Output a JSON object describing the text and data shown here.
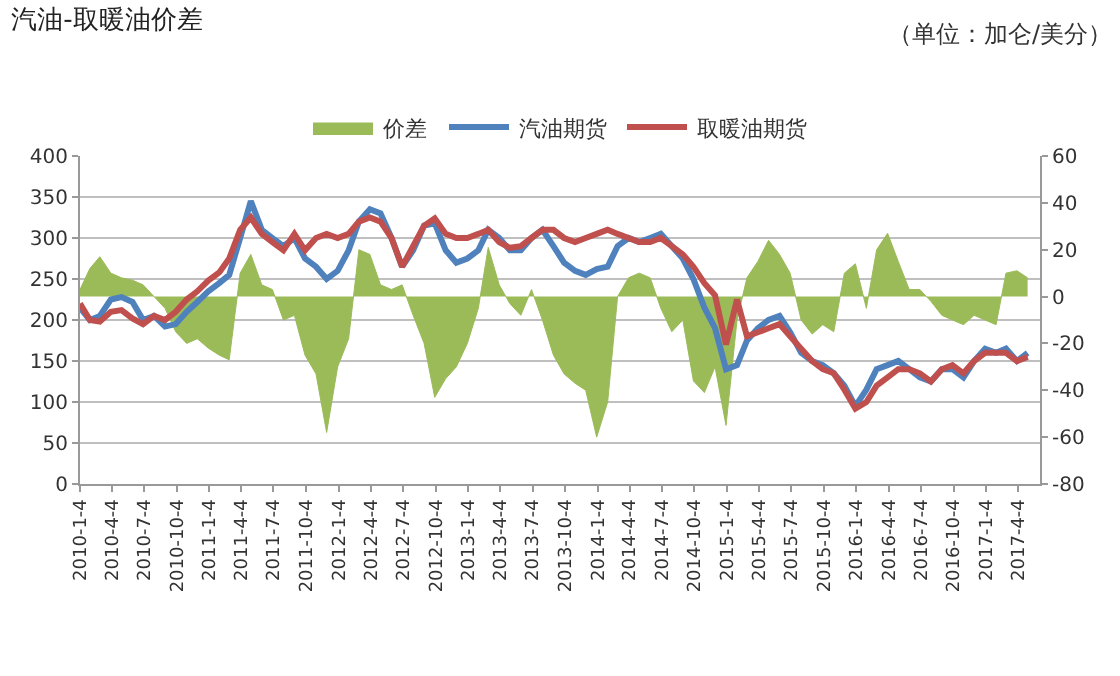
{
  "chart_data": {
    "type": "line",
    "title": "汽油-取暖油价差",
    "subtitle": "（单位：加仑/美分）",
    "xlim": [
      "2010-01-04",
      "2017-06-05"
    ],
    "xticks": [
      {
        "value": "2010-01-04",
        "label": "2010-1-4"
      },
      {
        "value": "2010-04-04",
        "label": "2010-4-4"
      },
      {
        "value": "2010-07-04",
        "label": "2010-7-4"
      },
      {
        "value": "2010-10-04",
        "label": "2010-10-4"
      },
      {
        "value": "2011-01-04",
        "label": "2011-1-4"
      },
      {
        "value": "2011-04-04",
        "label": "2011-4-4"
      },
      {
        "value": "2011-07-04",
        "label": "2011-7-4"
      },
      {
        "value": "2011-10-04",
        "label": "2011-10-4"
      },
      {
        "value": "2012-01-04",
        "label": "2012-1-4"
      },
      {
        "value": "2012-04-04",
        "label": "2012-4-4"
      },
      {
        "value": "2012-07-04",
        "label": "2012-7-4"
      },
      {
        "value": "2012-10-04",
        "label": "2012-10-4"
      },
      {
        "value": "2013-01-04",
        "label": "2013-1-4"
      },
      {
        "value": "2013-04-04",
        "label": "2013-4-4"
      },
      {
        "value": "2013-07-04",
        "label": "2013-7-4"
      },
      {
        "value": "2013-10-04",
        "label": "2013-10-4"
      },
      {
        "value": "2014-01-04",
        "label": "2014-1-4"
      },
      {
        "value": "2014-04-04",
        "label": "2014-4-4"
      },
      {
        "value": "2014-07-04",
        "label": "2014-7-4"
      },
      {
        "value": "2014-10-04",
        "label": "2014-10-4"
      },
      {
        "value": "2015-01-04",
        "label": "2015-1-4"
      },
      {
        "value": "2015-04-04",
        "label": "2015-4-4"
      },
      {
        "value": "2015-07-04",
        "label": "2015-7-4"
      },
      {
        "value": "2015-10-04",
        "label": "2015-10-4"
      },
      {
        "value": "2016-01-04",
        "label": "2016-1-4"
      },
      {
        "value": "2016-04-04",
        "label": "2016-4-4"
      },
      {
        "value": "2016-07-04",
        "label": "2016-7-4"
      },
      {
        "value": "2016-10-04",
        "label": "2016-10-4"
      },
      {
        "value": "2017-01-04",
        "label": "2017-1-4"
      },
      {
        "value": "2017-04-04",
        "label": "2017-4-4"
      }
    ],
    "ylim": [
      0,
      400
    ],
    "yticks": [
      0,
      50,
      100,
      150,
      200,
      250,
      300,
      350,
      400
    ],
    "y2lim": [
      -80,
      60
    ],
    "y2ticks": [
      -80,
      -60,
      -40,
      -20,
      0,
      20,
      40,
      60
    ],
    "grid": "y",
    "legend": "top",
    "x": [
      "2010-01-04",
      "2010-02",
      "2010-03",
      "2010-04",
      "2010-05",
      "2010-06",
      "2010-07",
      "2010-08",
      "2010-09",
      "2010-10",
      "2010-11",
      "2010-12",
      "2011-01",
      "2011-02",
      "2011-03",
      "2011-04",
      "2011-05",
      "2011-06",
      "2011-07",
      "2011-08",
      "2011-09",
      "2011-10",
      "2011-11",
      "2011-12",
      "2012-01",
      "2012-02",
      "2012-03",
      "2012-04",
      "2012-05",
      "2012-06",
      "2012-07",
      "2012-08",
      "2012-09",
      "2012-10",
      "2012-11",
      "2012-12",
      "2013-01",
      "2013-02",
      "2013-03",
      "2013-04",
      "2013-05",
      "2013-06",
      "2013-07",
      "2013-08",
      "2013-09",
      "2013-10",
      "2013-11",
      "2013-12",
      "2014-01",
      "2014-02",
      "2014-03",
      "2014-04",
      "2014-05",
      "2014-06",
      "2014-07",
      "2014-08",
      "2014-09",
      "2014-10",
      "2014-11",
      "2014-12",
      "2015-01",
      "2015-02",
      "2015-03",
      "2015-04",
      "2015-05",
      "2015-06",
      "2015-07",
      "2015-08",
      "2015-09",
      "2015-10",
      "2015-11",
      "2015-12",
      "2016-01",
      "2016-02",
      "2016-03",
      "2016-04",
      "2016-05",
      "2016-06",
      "2016-07",
      "2016-08",
      "2016-09",
      "2016-10",
      "2016-11",
      "2016-12",
      "2017-01",
      "2017-02",
      "2017-03",
      "2017-04",
      "2017-05"
    ],
    "series": [
      {
        "name": "价差",
        "type": "area",
        "axis": "y2",
        "color": "#9bbb59",
        "values": [
          3,
          12,
          17,
          10,
          8,
          7,
          5,
          0,
          -5,
          -15,
          -20,
          -18,
          -22,
          -25,
          -27,
          10,
          18,
          5,
          3,
          -10,
          -8,
          -25,
          -33,
          -58,
          -30,
          -18,
          20,
          18,
          5,
          3,
          5,
          -8,
          -20,
          -43,
          -35,
          -30,
          -20,
          -5,
          21,
          5,
          -3,
          -8,
          3,
          -10,
          -25,
          -33,
          -37,
          -40,
          -60,
          -45,
          0,
          8,
          10,
          8,
          -5,
          -15,
          -10,
          -36,
          -41,
          -30,
          -55,
          -10,
          8,
          15,
          24,
          18,
          10,
          -10,
          -16,
          -12,
          -15,
          10,
          14,
          -5,
          20,
          27,
          15,
          3,
          3,
          -2,
          -8,
          -10,
          -12,
          -8,
          -10,
          -12,
          10,
          11,
          8
        ]
      },
      {
        "name": "汽油期货",
        "color": "#4f81bd",
        "values": [
          215,
          200,
          205,
          225,
          228,
          222,
          200,
          205,
          192,
          195,
          210,
          222,
          235,
          245,
          255,
          300,
          345,
          310,
          300,
          290,
          300,
          275,
          265,
          250,
          260,
          285,
          320,
          335,
          330,
          300,
          265,
          285,
          315,
          318,
          285,
          270,
          275,
          285,
          310,
          300,
          285,
          285,
          300,
          310,
          290,
          270,
          260,
          255,
          262,
          265,
          290,
          300,
          295,
          300,
          305,
          290,
          275,
          250,
          215,
          190,
          140,
          145,
          175,
          190,
          200,
          205,
          185,
          160,
          150,
          145,
          135,
          120,
          95,
          115,
          140,
          145,
          150,
          140,
          130,
          125,
          140,
          140,
          130,
          150,
          165,
          160,
          165,
          150,
          160
        ]
      },
      {
        "name": "取暖油期货",
        "color": "#c0504d",
        "values": [
          220,
          200,
          198,
          210,
          212,
          202,
          195,
          205,
          200,
          210,
          225,
          235,
          248,
          258,
          275,
          310,
          325,
          305,
          295,
          285,
          305,
          285,
          300,
          305,
          300,
          305,
          320,
          325,
          320,
          300,
          265,
          290,
          315,
          324,
          305,
          300,
          300,
          305,
          310,
          295,
          288,
          290,
          300,
          310,
          310,
          300,
          295,
          300,
          305,
          310,
          305,
          300,
          295,
          295,
          300,
          290,
          280,
          265,
          245,
          230,
          170,
          225,
          180,
          185,
          190,
          195,
          180,
          165,
          150,
          140,
          135,
          115,
          92,
          100,
          120,
          130,
          140,
          140,
          135,
          125,
          140,
          145,
          135,
          150,
          160,
          160,
          160,
          150,
          155
        ]
      }
    ]
  }
}
